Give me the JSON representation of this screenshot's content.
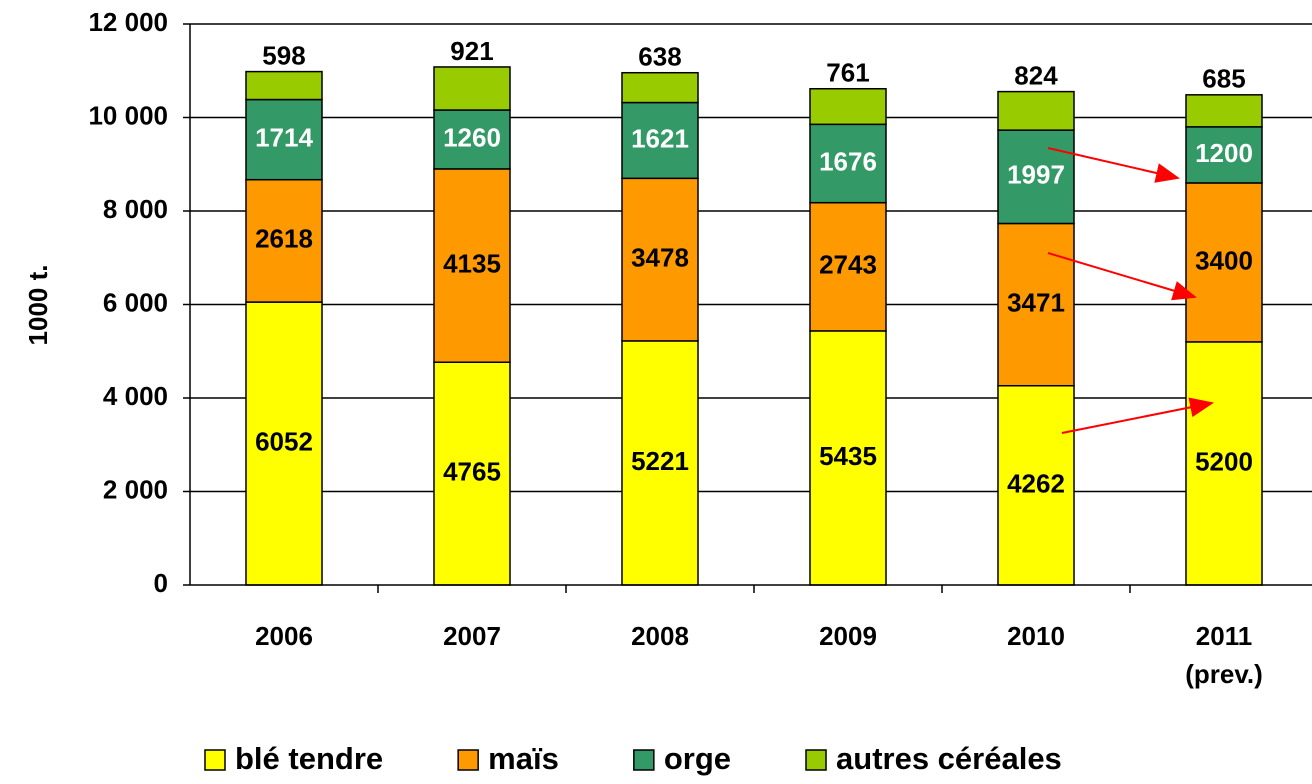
{
  "chart_data": {
    "type": "stacked_bar",
    "y_label": "1000 t.",
    "categories": [
      "2006",
      "2007",
      "2008",
      "2009",
      "2010",
      "2011\n(prev.)"
    ],
    "series": [
      {
        "name": "blé tendre",
        "color": "#ffff00",
        "values": [
          6052,
          4765,
          5221,
          5435,
          4262,
          5200
        ]
      },
      {
        "name": "maïs",
        "color": "#ff9900",
        "values": [
          2618,
          4135,
          3478,
          2743,
          3471,
          3400
        ]
      },
      {
        "name": "orge",
        "color": "#339966",
        "values": [
          1714,
          1260,
          1621,
          1676,
          1997,
          1200
        ]
      },
      {
        "name": "autres céréales",
        "color": "#99cc00",
        "values": [
          598,
          921,
          638,
          761,
          824,
          685
        ]
      }
    ],
    "ylim": [
      0,
      12000
    ],
    "yticks": [
      0,
      {
        "value": 2000,
        "label": "2 000"
      },
      {
        "value": 4000,
        "label": "4 000"
      },
      {
        "value": 6000,
        "label": "6 000"
      },
      {
        "value": 8000,
        "label": "8 000"
      },
      {
        "value": 10000,
        "label": "10 000"
      },
      {
        "value": 12000,
        "label": "12 000"
      }
    ],
    "grid": true,
    "legend": "bottom"
  }
}
